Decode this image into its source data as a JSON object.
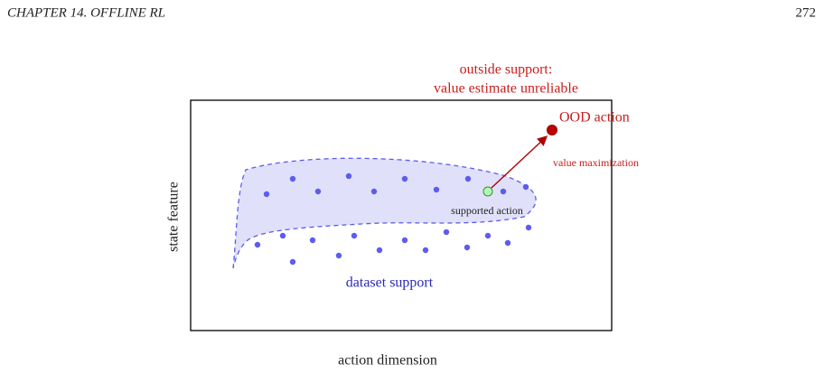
{
  "header": {
    "chapter": "CHAPTER 14.  OFFLINE RL",
    "page": "272"
  },
  "figure": {
    "outside_line1": "outside support:",
    "outside_line2": "value estimate unreliable",
    "ood_label": "OOD action",
    "arrow_label": "value maximization",
    "supported_label": "supported action",
    "region_label": "dataset support",
    "y_axis_label": "state feature",
    "x_axis_label": "action dimension"
  }
}
